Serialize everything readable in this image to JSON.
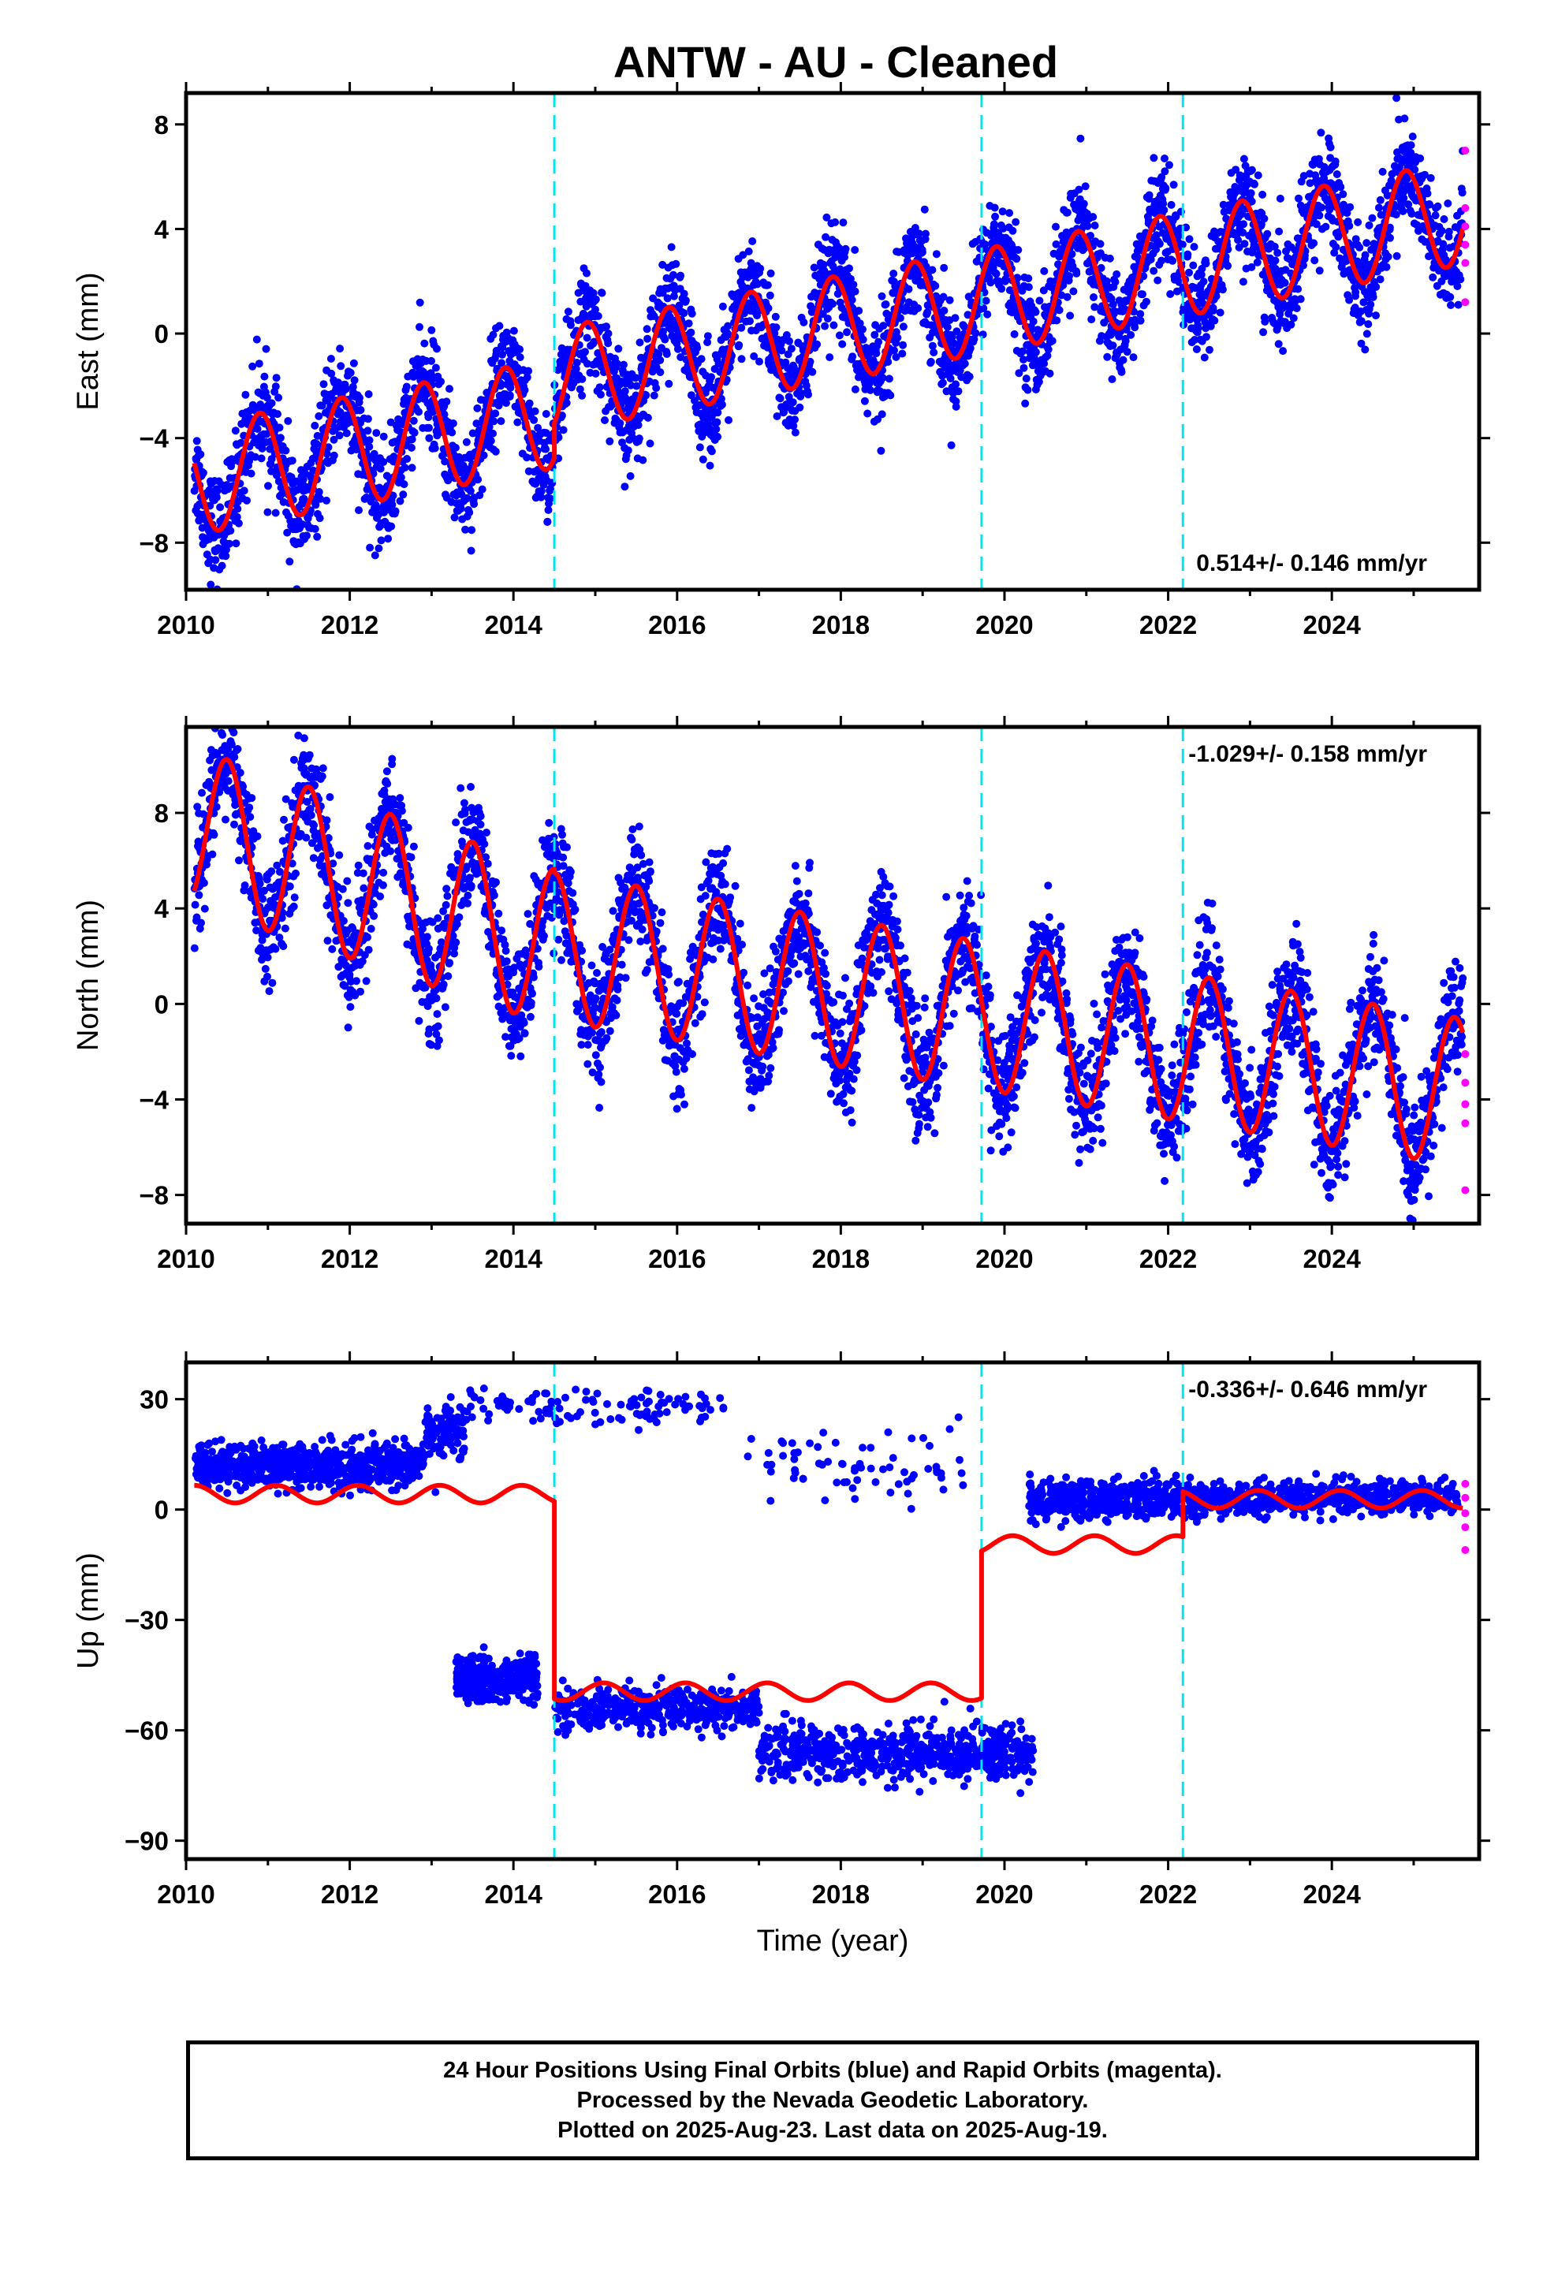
{
  "title": "ANTW  - AU - Cleaned",
  "footer": {
    "line1": "24 Hour Positions Using Final Orbits (blue) and Rapid Orbits (magenta).",
    "line2": "Processed by the Nevada Geodetic Laboratory.",
    "line3": "Plotted on 2025-Aug-23. Last data on 2025-Aug-19."
  },
  "colors": {
    "final_points": "#0000ff",
    "rapid_points": "#ff00ff",
    "model": "#ff0000",
    "events": "#00e5ee"
  },
  "chart_data": [
    {
      "type": "scatter",
      "panel": "East",
      "ylabel": "East (mm)",
      "xlabel": "",
      "xlim": [
        2010,
        2025.8
      ],
      "ylim": [
        -9.8,
        9.2
      ],
      "xticks": [
        "2010",
        "2012",
        "2014",
        "2016",
        "2018",
        "2020",
        "2022",
        "2024"
      ],
      "yticks": [
        "8",
        "4",
        "0",
        "−4",
        "−8"
      ],
      "ytick_values": [
        8,
        4,
        0,
        -4,
        -8
      ],
      "grid": false,
      "rate_label": "0.514+/- 0.146 mm/yr",
      "rate_label_position": "bottom-right",
      "event_lines": [
        2014.5,
        2019.72,
        2022.18
      ],
      "model": {
        "segments": [
          {
            "x0": 2010.1,
            "x1": 2014.5,
            "offset": -5.6,
            "slope": 0.58,
            "amplitude": 2.1,
            "peak_phase": 0.9
          },
          {
            "x0": 2014.5,
            "x1": 2025.6,
            "offset": -1.8,
            "slope": 0.58,
            "amplitude": 2.0,
            "peak_phase": 0.9
          }
        ]
      },
      "scatter_spread": 1.0,
      "rapid_points": [
        [
          2025.63,
          7.0
        ],
        [
          2025.63,
          4.8
        ],
        [
          2025.63,
          4.1
        ],
        [
          2025.63,
          3.4
        ],
        [
          2025.63,
          2.7
        ],
        [
          2025.63,
          1.2
        ]
      ]
    },
    {
      "type": "scatter",
      "panel": "North",
      "ylabel": "North (mm)",
      "xlabel": "",
      "xlim": [
        2010,
        2025.8
      ],
      "ylim": [
        -9.2,
        11.6
      ],
      "xticks": [
        "2010",
        "2012",
        "2014",
        "2016",
        "2018",
        "2020",
        "2022",
        "2024"
      ],
      "yticks": [
        "8",
        "4",
        "0",
        "−4",
        "−8"
      ],
      "ytick_values": [
        8,
        4,
        0,
        -4,
        -8
      ],
      "grid": false,
      "rate_label": "-1.029+/- 0.158 mm/yr",
      "rate_label_position": "top-right",
      "event_lines": [
        2014.5,
        2019.72,
        2022.18
      ],
      "model": {
        "segments": [
          {
            "x0": 2010.1,
            "x1": 2014.5,
            "offset": 7.4,
            "slope": -1.15,
            "amplitude": 3.3,
            "peak_phase": 0.5
          },
          {
            "x0": 2014.5,
            "x1": 2025.6,
            "offset": 2.4,
            "slope": -0.55,
            "amplitude": 3.1,
            "peak_phase": 0.5
          }
        ]
      },
      "scatter_spread": 1.2,
      "rapid_points": [
        [
          2025.63,
          -2.1
        ],
        [
          2025.63,
          -3.3
        ],
        [
          2025.63,
          -4.2
        ],
        [
          2025.63,
          -5.0
        ],
        [
          2025.63,
          -7.8
        ]
      ]
    },
    {
      "type": "scatter",
      "panel": "Up",
      "ylabel": "Up (mm)",
      "xlabel": "Time (year)",
      "xlim": [
        2010,
        2025.8
      ],
      "ylim": [
        -95,
        40
      ],
      "xticks": [
        "2010",
        "2012",
        "2014",
        "2016",
        "2018",
        "2020",
        "2022",
        "2024"
      ],
      "yticks": [
        "30",
        "0",
        "−30",
        "−60",
        "−90"
      ],
      "ytick_values": [
        30,
        0,
        -30,
        -60,
        -90
      ],
      "grid": false,
      "rate_label": "-0.336+/- 0.646 mm/yr",
      "rate_label_position": "top-right",
      "event_lines": [
        2014.5,
        2019.72,
        2022.18
      ],
      "model": {
        "segments": [
          {
            "x0": 2010.1,
            "x1": 2014.5,
            "offset": 4.2,
            "slope": 0,
            "amplitude": 2.4,
            "peak_phase": 0.1
          },
          {
            "x0": 2014.5,
            "x1": 2019.72,
            "offset": -49.5,
            "slope": 0,
            "amplitude": 2.4,
            "peak_phase": 0.1
          },
          {
            "x0": 2019.72,
            "x1": 2022.18,
            "offset": -9.5,
            "slope": 0,
            "amplitude": 2.4,
            "peak_phase": 0.1
          },
          {
            "x0": 2022.18,
            "x1": 2025.6,
            "offset": 2.8,
            "slope": 0,
            "amplitude": 2.4,
            "peak_phase": 0.1
          }
        ]
      },
      "point_clusters": [
        {
          "x0": 2010.1,
          "x1": 2012.9,
          "y": 12,
          "spread": 5,
          "count": 650
        },
        {
          "x0": 2012.9,
          "x1": 2013.4,
          "y": 22,
          "spread": 6,
          "count": 90
        },
        {
          "x0": 2013.3,
          "x1": 2014.3,
          "y": -46,
          "spread": 5,
          "count": 320
        },
        {
          "x0": 2013.4,
          "x1": 2016.6,
          "y": 28,
          "spread": 4,
          "count": 110
        },
        {
          "x0": 2014.5,
          "x1": 2017.0,
          "y": -54,
          "spread": 5,
          "count": 420
        },
        {
          "x0": 2016.8,
          "x1": 2019.5,
          "y": 12,
          "spread": 8,
          "count": 70
        },
        {
          "x0": 2017.0,
          "x1": 2019.7,
          "y": -66,
          "spread": 6,
          "count": 480
        },
        {
          "x0": 2019.7,
          "x1": 2020.35,
          "y": -66,
          "spread": 6,
          "count": 130
        },
        {
          "x0": 2020.3,
          "x1": 2022.2,
          "y": 3,
          "spread": 4.5,
          "count": 420
        },
        {
          "x0": 2022.2,
          "x1": 2025.55,
          "y": 3,
          "spread": 3.5,
          "count": 650
        }
      ],
      "rapid_points": [
        [
          2025.63,
          7.0
        ],
        [
          2025.63,
          3.2
        ],
        [
          2025.63,
          -1.0
        ],
        [
          2025.63,
          -4.8
        ],
        [
          2025.63,
          -11.0
        ]
      ]
    }
  ]
}
